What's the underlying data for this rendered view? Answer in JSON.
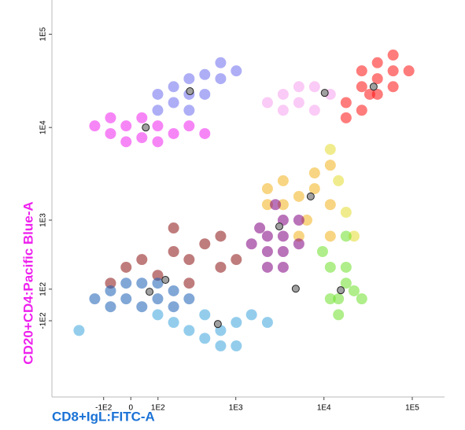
{
  "chart_data": {
    "type": "scatter",
    "xscale": "biexponential",
    "yscale": "biexponential",
    "x_label": "CD8+IgL:FITC-A",
    "y_label": "CD20+CD4:Pacific Blue-A",
    "x_label_color": "#1a72d6",
    "y_label_color": "#ee22ee",
    "xlim": [
      -500,
      232000
    ],
    "ylim": [
      -1200,
      233000
    ],
    "xticks": [
      {
        "value": -100,
        "label": "-1E2"
      },
      0,
      {
        "value": 100,
        "label": "1E2"
      },
      {
        "value": 1000,
        "label": "1E3"
      },
      {
        "value": 10000,
        "label": "1E4"
      },
      {
        "value": 100000,
        "label": "1E5"
      }
    ],
    "yticks": [
      {
        "value": 100000,
        "label": "1E5"
      },
      {
        "value": 10000,
        "label": "1E4"
      },
      {
        "value": 1000,
        "label": "1E3"
      },
      {
        "value": 100,
        "label": "1E2"
      },
      {
        "value": -100,
        "label": "-1E2"
      }
    ],
    "series": [
      {
        "color": "#6b6bef",
        "x": [
          99,
          177,
          283,
          438,
          670,
          283,
          438,
          177,
          670,
          1013,
          99,
          283
        ],
        "y": [
          22700,
          27400,
          33400,
          37000,
          33400,
          22700,
          22700,
          18500,
          49500,
          40500,
          15300,
          15300
        ]
      },
      {
        "color": "#ee22ee",
        "x": [
          -141,
          -72,
          -16,
          38,
          99,
          177,
          38,
          283,
          438,
          -16,
          -72,
          99
        ],
        "y": [
          10400,
          12700,
          10400,
          12700,
          10400,
          8600,
          7780,
          10400,
          8600,
          7030,
          8600,
          7030
        ]
      },
      {
        "color": "#f5a0ee",
        "x": [
          3450,
          5200,
          7830,
          5200,
          11800,
          2290,
          7830,
          3450
        ],
        "y": [
          22700,
          27400,
          27400,
          18500,
          22700,
          18500,
          15300,
          15300
        ]
      },
      {
        "color": "#ff1010",
        "x": [
          17800,
          26800,
          40300,
          60700,
          40300,
          60700,
          26800,
          17800,
          60700,
          91500,
          33000,
          40300,
          26800
        ],
        "y": [
          18500,
          27400,
          33400,
          40500,
          49500,
          59800,
          15300,
          12700,
          27400,
          40500,
          22700,
          22700,
          40500
        ]
      },
      {
        "color": "#f2b21e",
        "x": [
          2290,
          3450,
          5200,
          7830,
          3450,
          7830,
          11800,
          6400,
          11800,
          5200,
          2290,
          11800
        ],
        "y": [
          2200,
          2680,
          1815,
          2200,
          1480,
          3250,
          3940,
          1000,
          660,
          660,
          1480,
          1480
        ]
      },
      {
        "color": "#e4dc30",
        "x": [
          14600,
          17800,
          11800,
          21900
        ],
        "y": [
          2680,
          1220,
          5820,
          660
        ]
      },
      {
        "color": "#800080",
        "x": [
          2290,
          3450,
          1510,
          2290,
          3450,
          5200,
          2290,
          3450,
          5200,
          1870,
          2820,
          3450
        ],
        "y": [
          660,
          660,
          537,
          434,
          434,
          537,
          268,
          1000,
          1000,
          817,
          1480,
          268
        ]
      },
      {
        "color": "#6ee02a",
        "x": [
          11800,
          17800,
          14600,
          21900,
          11800,
          17800,
          9640,
          26800,
          14600,
          17800
        ],
        "y": [
          268,
          141,
          38,
          89,
          38,
          268,
          434,
          38,
          -61,
          660
        ]
      },
      {
        "color": "#8b1010",
        "x": [
          -16,
          38,
          177,
          283,
          438,
          670,
          99,
          283,
          670,
          -72,
          1013,
          177
        ],
        "y": [
          268,
          343,
          434,
          343,
          537,
          268,
          200,
          141,
          660,
          141,
          343,
          817
        ]
      },
      {
        "color": "#1a5fb4",
        "x": [
          -72,
          -16,
          38,
          99,
          177,
          38,
          -16,
          99,
          -72,
          -141,
          177,
          283
        ],
        "y": [
          89,
          38,
          141,
          38,
          89,
          -11,
          141,
          141,
          -11,
          38,
          -11,
          38
        ]
      },
      {
        "color": "#3ca4dc",
        "x": [
          177,
          438,
          670,
          1013,
          438,
          670,
          1510,
          283,
          2290,
          99,
          -234,
          1013
        ],
        "y": [
          -111,
          -61,
          -168,
          -111,
          -230,
          -298,
          -61,
          -168,
          -111,
          -61,
          -168,
          -298
        ]
      }
    ],
    "centroids": {
      "color": "#a0a0a0",
      "x": [
        290,
        52,
        10200,
        36500,
        7070,
        3120,
        15500,
        134,
        66,
        622,
        4790
      ],
      "y": [
        24500,
        10000,
        23500,
        27400,
        1815,
        850,
        93,
        165,
        83,
        -122,
        103
      ]
    }
  }
}
